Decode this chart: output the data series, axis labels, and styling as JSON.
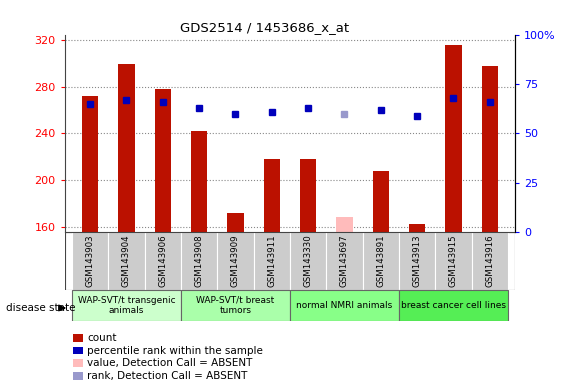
{
  "title": "GDS2514 / 1453686_x_at",
  "samples": [
    "GSM143903",
    "GSM143904",
    "GSM143906",
    "GSM143908",
    "GSM143909",
    "GSM143911",
    "GSM143330",
    "GSM143697",
    "GSM143891",
    "GSM143913",
    "GSM143915",
    "GSM143916"
  ],
  "count_values": [
    272,
    300,
    278,
    242,
    172,
    218,
    218,
    null,
    208,
    162,
    316,
    298
  ],
  "count_absent": [
    null,
    null,
    null,
    null,
    null,
    null,
    null,
    168,
    null,
    null,
    null,
    null
  ],
  "rank_values": [
    65,
    67,
    66,
    63,
    60,
    61,
    63,
    null,
    62,
    59,
    68,
    66
  ],
  "rank_absent": [
    null,
    null,
    null,
    null,
    null,
    null,
    null,
    60,
    null,
    null,
    null,
    null
  ],
  "ylim_left": [
    155,
    325
  ],
  "ylim_right": [
    0,
    100
  ],
  "yticks_left": [
    160,
    200,
    240,
    280,
    320
  ],
  "yticks_right": [
    0,
    25,
    50,
    75,
    100
  ],
  "group_spans": [
    {
      "label": "WAP-SVT/t transgenic\nanimals",
      "start": 0,
      "end": 2,
      "color": "#ccffcc"
    },
    {
      "label": "WAP-SVT/t breast\ntumors",
      "start": 3,
      "end": 5,
      "color": "#aaffaa"
    },
    {
      "label": "normal NMRI animals",
      "start": 6,
      "end": 8,
      "color": "#88ff88"
    },
    {
      "label": "breast cancer cell lines",
      "start": 9,
      "end": 11,
      "color": "#55ee55"
    }
  ],
  "bar_color": "#bb1100",
  "bar_absent_color": "#ffbbbb",
  "rank_color": "#0000bb",
  "rank_absent_color": "#9999cc",
  "bar_width": 0.45,
  "label_area_color": "#cccccc",
  "disease_state_label": "disease state"
}
